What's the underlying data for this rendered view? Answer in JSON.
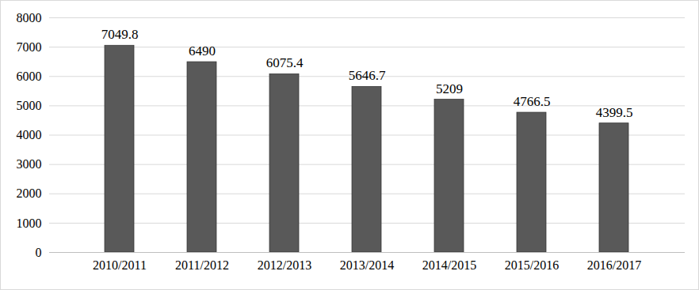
{
  "chart_data": {
    "type": "bar",
    "categories": [
      "2010/2011",
      "2011/2012",
      "2012/2013",
      "2013/2014",
      "2014/2015",
      "2015/2016",
      "2016/2017"
    ],
    "values": [
      7049.8,
      6490,
      6075.4,
      5646.7,
      5209,
      4766.5,
      4399.5
    ],
    "color": "#595959",
    "ylim": [
      0,
      8000
    ],
    "yticks": [
      0,
      1000,
      2000,
      3000,
      4000,
      5000,
      6000,
      7000,
      8000
    ],
    "grid": true,
    "data_labels": true
  }
}
